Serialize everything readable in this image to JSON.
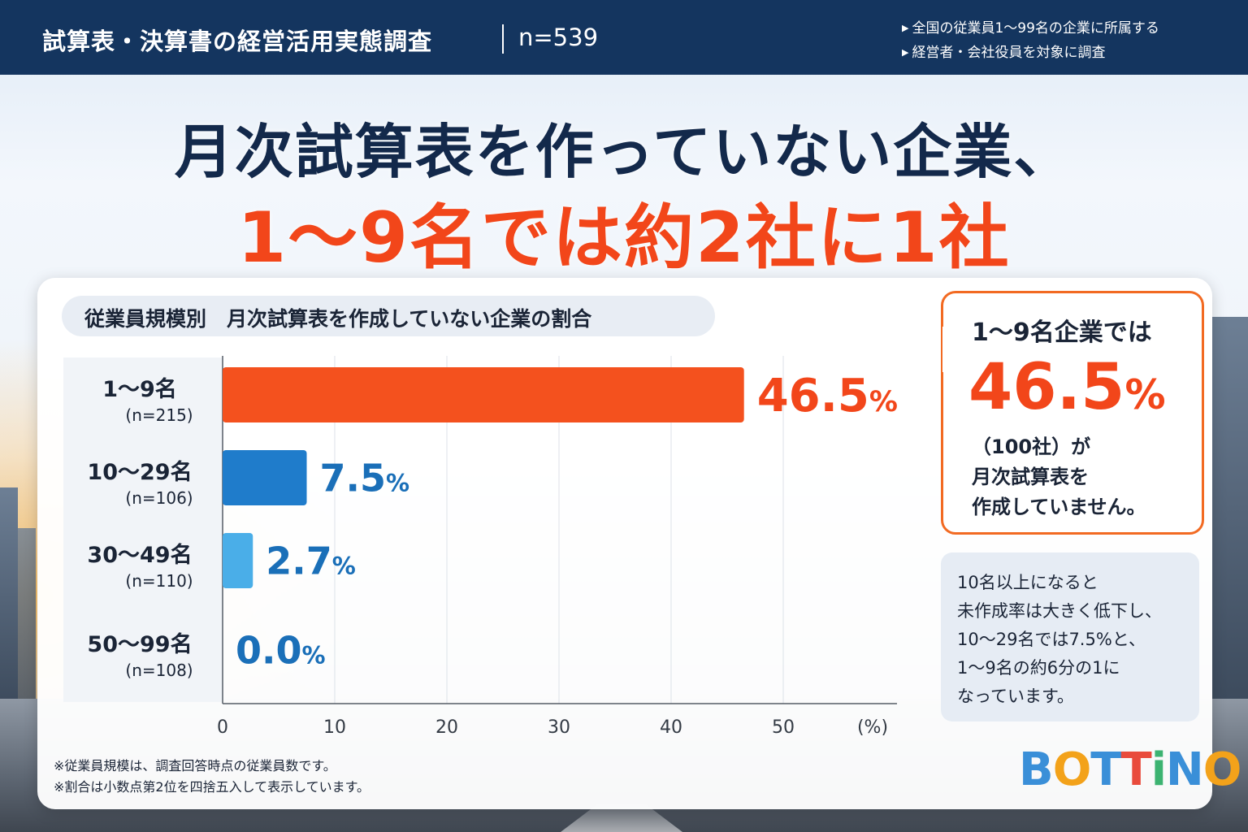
{
  "header": {
    "title": "試算表・決算書の経営活用実態調査",
    "sample": "n=539",
    "note_line1": "全国の従業員1〜99名の企業に所属する",
    "note_line2": "経営者・会社役員を対象に調査"
  },
  "headline": {
    "line1": "月次試算表を作っていない企業、",
    "line2": "1〜9名では約2社に1社"
  },
  "chart_data": {
    "type": "bar",
    "orientation": "horizontal",
    "title": "従業員規模別　月次試算表を作成していない企業の割合",
    "categories": [
      "1〜9名",
      "10〜29名",
      "30〜49名",
      "50〜99名"
    ],
    "sample_sizes": [
      "(n=215)",
      "(n=106)",
      "(n=110)",
      "(n=108)"
    ],
    "values": [
      46.5,
      7.5,
      2.7,
      0.0
    ],
    "value_labels": [
      "46.5",
      "7.5",
      "2.7",
      "0.0"
    ],
    "unit_suffix": "%",
    "bar_colors": [
      "#f4511e",
      "#1f7ccb",
      "#4aaee8",
      "#4aaee8"
    ],
    "label_colors": [
      "#f2461a",
      "#1a6fb8",
      "#1a6fb8",
      "#1a6fb8"
    ],
    "xlim": [
      0,
      60
    ],
    "xticks": [
      "0",
      "10",
      "20",
      "30",
      "40",
      "50"
    ],
    "xtick_values": [
      0,
      10,
      20,
      30,
      40,
      50
    ],
    "xunit": "(%)",
    "grid": true
  },
  "callout": {
    "head": "1〜9名企業では",
    "big_value": "46.5",
    "big_unit": "%",
    "body_line1": "（100社）が",
    "body_line2": "月次試算表を",
    "body_line3": "作成していません。"
  },
  "info": {
    "line1": "10名以上になると",
    "line2": "未作成率は大きく低下し、",
    "line3": "10〜29名では7.5%と、",
    "line4": "1〜9名の約6分の1に",
    "line5": "なっています。"
  },
  "notes": {
    "line1": "※従業員規模は、調査回答時点の従業員数です。",
    "line2": "※割合は小数点第2位を四捨五入して表示しています。"
  },
  "logo": {
    "text": "BOTTINO",
    "letters": [
      "B",
      "O",
      "T",
      "T",
      "i",
      "N",
      "O"
    ],
    "colors": [
      "#3a8fd8",
      "#f3a21a",
      "#3a8fd8",
      "#e94b3c",
      "#3cb371",
      "#3a8fd8",
      "#f3a21a"
    ]
  }
}
